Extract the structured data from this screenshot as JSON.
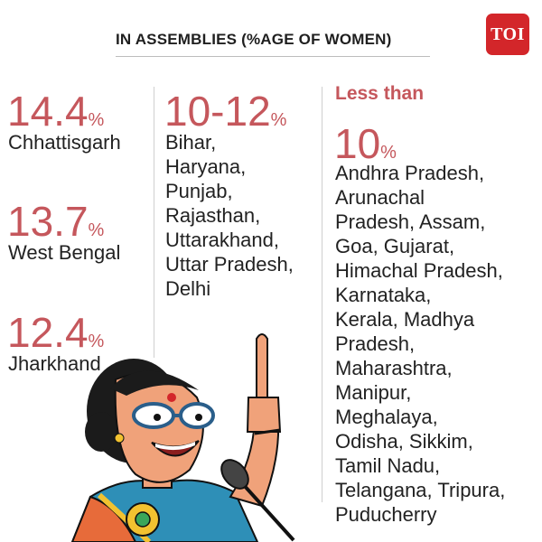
{
  "header": {
    "title": "IN ASSEMBLIES (%AGE OF WOMEN)",
    "logo_text": "TOI"
  },
  "colors": {
    "accent": "#c5575c",
    "logo_red": "#d3262a",
    "text": "#222222"
  },
  "column1": [
    {
      "value": "14.4",
      "unit": "%",
      "state": "Chhattisgarh"
    },
    {
      "value": "13.7",
      "unit": "%",
      "state": "West Bengal"
    },
    {
      "value": "12.4",
      "unit": "%",
      "state": "Jharkhand"
    }
  ],
  "column2": {
    "value": "10-12",
    "unit": "%",
    "states": "Bihar,\nHaryana,\nPunjab,\nRajasthan,\nUttarakhand,\nUttar Pradesh,\nDelhi"
  },
  "column3": {
    "prefix": "Less than",
    "value": "10",
    "unit": "%",
    "states": "Andhra Pradesh,\nArunachal\nPradesh, Assam,\nGoa, Gujarat,\nHimachal Pradesh,\nKarnataka,\nKerala, Madhya\nPradesh,\nMaharashtra,\nManipur,\nMeghalaya,\nOdisha, Sikkim,\nTamil Nadu,\nTelangana, Tripura,\nPuducherry"
  },
  "illustration": {
    "icon": "woman-politician-cartoon"
  }
}
